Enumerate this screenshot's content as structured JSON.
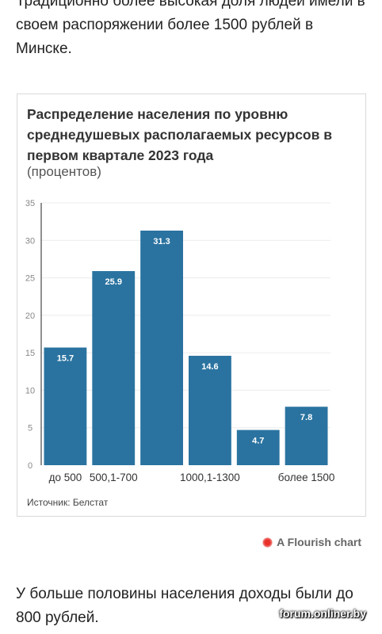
{
  "article": {
    "paragraph_top": "Традиционно более высокая доля людей имели в своем распоряжении более 1500 рублей в Минске.",
    "paragraph_bottom": "У больше половины населения доходы были до 800 рублей."
  },
  "chart_data": {
    "type": "bar",
    "title": "Распределение населения по уровню среднедушевых располагаемых ресурсов в первом квартале 2023 года",
    "subtitle": "(процентов)",
    "categories": [
      "до 500",
      "500,1-700",
      "",
      "1000,1-1300",
      "",
      "более 1500"
    ],
    "values": [
      15.7,
      25.9,
      31.3,
      14.6,
      4.7,
      7.8
    ],
    "data_labels": [
      "15.7",
      "25.9",
      "31.3",
      "14.6",
      "4.7",
      "7.8"
    ],
    "yticks": [
      "0",
      "5",
      "10",
      "15",
      "20",
      "25",
      "30",
      "35"
    ],
    "ylim": [
      0,
      35
    ],
    "bar_color": "#2a73a0",
    "grid": true,
    "source": "Источник: Белстат"
  },
  "branding": {
    "flourish_label": "A Flourish chart",
    "flourish_icon": "flourish-logo-icon",
    "watermark": "forum.onliner.by"
  }
}
